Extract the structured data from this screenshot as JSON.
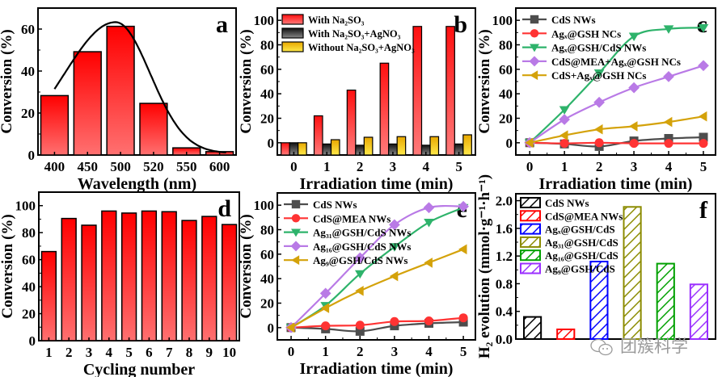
{
  "watermark": {
    "text": "团簇科学",
    "icon": "wechat-icon"
  },
  "chart_data": [
    {
      "id": "a",
      "type": "bar",
      "panel_label": "a",
      "title": "",
      "xlabel": "Wavelength (nm)",
      "ylabel": "Conversion (%)",
      "categories": [
        "400",
        "450",
        "500",
        "520",
        "550",
        "600"
      ],
      "values": [
        28.3,
        49.2,
        61.3,
        24.6,
        3.4,
        1.6
      ],
      "ylim": [
        0,
        70
      ],
      "yticks": [
        0,
        20,
        40,
        60
      ],
      "fit_curve": {
        "type": "gaussian-fit",
        "peak_x_category_index": 1.85,
        "peak_value": 62.5
      },
      "bar_color": "#ff0000",
      "grid": false
    },
    {
      "id": "b",
      "type": "bar",
      "panel_label": "b",
      "xlabel": "Irradiation time (min)",
      "ylabel": "Conversion (%)",
      "categories": [
        "0",
        "1",
        "2",
        "3",
        "4",
        "5"
      ],
      "ylim": [
        -10,
        110
      ],
      "yticks": [
        0,
        20,
        40,
        60,
        80,
        100
      ],
      "legend_position": "top-left",
      "series": [
        {
          "name": "With Na₂SO₃",
          "color": "#ff1a1a",
          "values": [
            0,
            22,
            43,
            65,
            95,
            95
          ]
        },
        {
          "name": "With Na₂SO₃+AgNO₃",
          "color": "#333333",
          "values": [
            0,
            -1,
            -2,
            -1,
            -2,
            -1
          ]
        },
        {
          "name": "Without Na₂SO₃+AgNO₃",
          "color": "#f2c200",
          "values": [
            0,
            2.5,
            4.5,
            5,
            5,
            6.5
          ]
        }
      ],
      "grid": false
    },
    {
      "id": "c",
      "type": "line",
      "panel_label": "c",
      "xlabel": "Irradiation time (min)",
      "ylabel": "Conversion (%)",
      "x": [
        0,
        1,
        2,
        3,
        4,
        5
      ],
      "xlim": [
        -0.4,
        5.35
      ],
      "ylim": [
        -10,
        110
      ],
      "yticks": [
        0,
        20,
        40,
        60,
        80,
        100
      ],
      "legend_position": "top-left",
      "series": [
        {
          "name": "CdS NWs",
          "color": "#4d4d4d",
          "marker": "square",
          "values": [
            0,
            -1,
            -3,
            1.5,
            3.5,
            4.5
          ]
        },
        {
          "name": "Agₓ@GSH NCs",
          "color": "#ff3333",
          "marker": "circle",
          "values": [
            0,
            -0.5,
            0,
            -0.5,
            -0.5,
            -0.5
          ]
        },
        {
          "name": "Agₓ@GSH/CdS NWs",
          "color": "#2eb36b",
          "marker": "triangle-down",
          "values": [
            0,
            27,
            57,
            87,
            93,
            94
          ]
        },
        {
          "name": "CdS@MEA+Agₓ@GSH NCs",
          "color": "#b97ae6",
          "marker": "diamond",
          "values": [
            0,
            19,
            33,
            45,
            54,
            63
          ]
        },
        {
          "name": "CdS+Agₓ@GSH NCs",
          "color": "#d4a20a",
          "marker": "triangle-left",
          "values": [
            0,
            6,
            11,
            13.5,
            17,
            21.5
          ]
        }
      ],
      "grid": false
    },
    {
      "id": "d",
      "type": "bar",
      "panel_label": "d",
      "xlabel": "Cycling number",
      "ylabel": "Conversion (%)",
      "categories": [
        "1",
        "2",
        "3",
        "4",
        "5",
        "6",
        "7",
        "8",
        "9",
        "10"
      ],
      "values": [
        66,
        90.5,
        85.5,
        96,
        94.5,
        96,
        95.5,
        89,
        92,
        86
      ],
      "ylim": [
        0,
        110
      ],
      "yticks": [
        0,
        20,
        40,
        60,
        80,
        100
      ],
      "bar_color": "#ff0000",
      "grid": false
    },
    {
      "id": "e",
      "type": "line",
      "panel_label": "e",
      "xlabel": "Irradiation time (min)",
      "ylabel": "Conversion (%)",
      "x": [
        0,
        1,
        2,
        3,
        4,
        5
      ],
      "xlim": [
        -0.4,
        5.35
      ],
      "ylim": [
        -10,
        110
      ],
      "yticks": [
        0,
        20,
        40,
        60,
        80,
        100
      ],
      "legend_position": "top-left",
      "series": [
        {
          "name": "CdS NWs",
          "color": "#4d4d4d",
          "marker": "square",
          "values": [
            0,
            -1,
            -3,
            1.5,
            3.5,
            4.5
          ]
        },
        {
          "name": "CdS@MEA NWs",
          "color": "#ff3333",
          "marker": "circle",
          "values": [
            0,
            1.5,
            2,
            5,
            5.5,
            8
          ]
        },
        {
          "name": "Ag₃₁@GSH/CdS NWs",
          "color": "#2eb36b",
          "marker": "triangle-down",
          "values": [
            0,
            18,
            44,
            66,
            86,
            98
          ]
        },
        {
          "name": "Ag₁₆@GSH/CdS NWs",
          "color": "#b97ae6",
          "marker": "diamond",
          "values": [
            0,
            28,
            57,
            84,
            98,
            99
          ]
        },
        {
          "name": "Ag₉@GSH/CdS NWs",
          "color": "#d4a20a",
          "marker": "triangle-left",
          "values": [
            0,
            16,
            30,
            42,
            53,
            64
          ]
        }
      ],
      "grid": false
    },
    {
      "id": "f",
      "type": "bar",
      "panel_label": "f",
      "xlabel": "",
      "ylabel": "H₂ evolution (mmol·g⁻¹·h⁻¹)",
      "categories": [
        "CdS NWs",
        "CdS@MEA NWs",
        "Agₓ@GSH/CdS",
        "Ag₃₁@GSH/CdS",
        "Ag₁₆@GSH/CdS",
        "Ag₉@GSH/CdS"
      ],
      "values": [
        0.32,
        0.14,
        1.12,
        1.91,
        1.09,
        0.79
      ],
      "colors": [
        "#000000",
        "#ff0000",
        "#0000ff",
        "#8b8b00",
        "#00a000",
        "#9b30ff"
      ],
      "fill": "hatched",
      "ylim": [
        0,
        2.1
      ],
      "yticks": [
        "0.0",
        "0.4",
        "0.8",
        "1.2",
        "1.6",
        "2.0"
      ],
      "legend_position": "top-left",
      "grid": false
    }
  ]
}
